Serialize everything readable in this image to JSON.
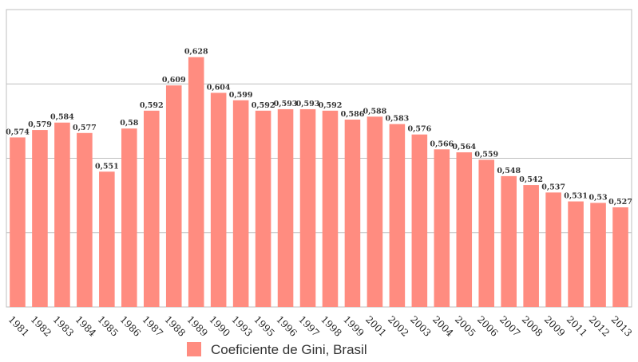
{
  "chart_data": {
    "type": "bar",
    "categories": [
      "1981",
      "1982",
      "1983",
      "1984",
      "1985",
      "1986",
      "1987",
      "1988",
      "1989",
      "1990",
      "1993",
      "1995",
      "1996",
      "1997",
      "1998",
      "1999",
      "2001",
      "2002",
      "2003",
      "2004",
      "2005",
      "2006",
      "2007",
      "2008",
      "2009",
      "2011",
      "2012",
      "2013"
    ],
    "series": [
      {
        "name": "Coeficiente de Gini, Brasil",
        "values": [
          0.574,
          0.579,
          0.584,
          0.577,
          0.551,
          0.58,
          0.592,
          0.609,
          0.628,
          0.604,
          0.599,
          0.592,
          0.593,
          0.593,
          0.592,
          0.586,
          0.588,
          0.583,
          0.576,
          0.566,
          0.564,
          0.559,
          0.548,
          0.542,
          0.537,
          0.531,
          0.53,
          0.527
        ],
        "labels": [
          "0,574",
          "0,579",
          "0,584",
          "0,577",
          "0,551",
          "0,58",
          "0,592",
          "0,609",
          "0,628",
          "0,604",
          "0,599",
          "0,592",
          "0,593",
          "0,593",
          "0,592",
          "0,586",
          "0,588",
          "0,583",
          "0,576",
          "0,566",
          "0,564",
          "0,559",
          "0,548",
          "0,542",
          "0,537",
          "0,531",
          "0,53",
          "0,527"
        ],
        "color": "#ff8c80"
      }
    ],
    "ylim": [
      0.46,
      0.66
    ],
    "grid": true,
    "legend": "bottom-center"
  }
}
